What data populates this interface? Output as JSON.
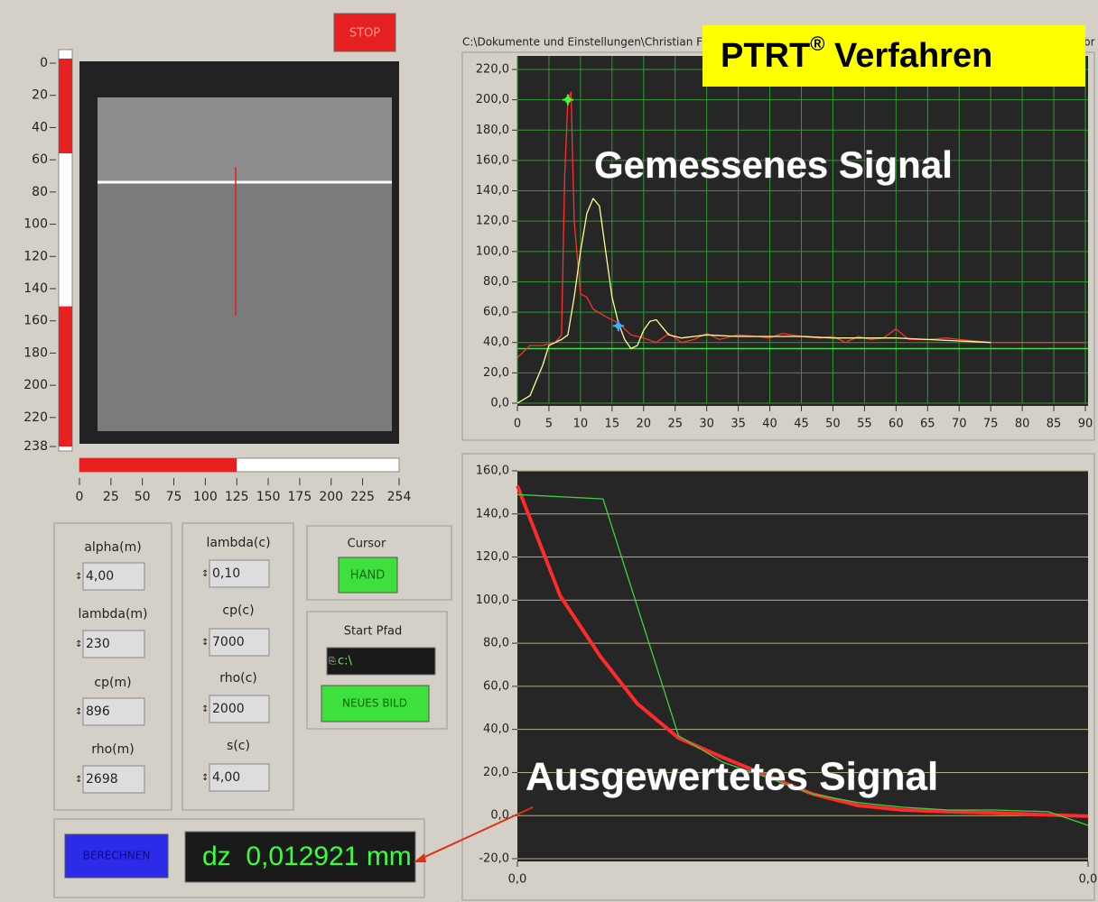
{
  "stop_button": "STOP",
  "path": "C:\\Dokumente und Einstellungen\\Christian Flo",
  "path_end": "br",
  "banner": {
    "title": "PTRT",
    "mark": "®",
    "rest": " Verfahren"
  },
  "overlay_top": "Gemessenes Signal",
  "overlay_bottom": "Ausgewertetes Signal",
  "vertical_scale": {
    "lim": [
      0,
      238
    ],
    "ticks": [
      0,
      20,
      40,
      60,
      80,
      100,
      120,
      140,
      160,
      180,
      200,
      220,
      238
    ],
    "selection": [
      56,
      151
    ]
  },
  "horizontal_scale": {
    "lim": [
      0,
      254
    ],
    "ticks": [
      0,
      25,
      50,
      75,
      100,
      125,
      150,
      175,
      200,
      225,
      254
    ],
    "value": 125
  },
  "params_m": [
    {
      "label": "alpha(m)",
      "value": "4,00"
    },
    {
      "label": "lambda(m)",
      "value": "230"
    },
    {
      "label": "cp(m)",
      "value": "896"
    },
    {
      "label": "rho(m)",
      "value": "2698"
    }
  ],
  "params_c": [
    {
      "label": "lambda(c)",
      "value": "0,10"
    },
    {
      "label": "cp(c)",
      "value": "7000"
    },
    {
      "label": "rho(c)",
      "value": "2000"
    },
    {
      "label": "s(c)",
      "value": "4,00"
    }
  ],
  "cursor": {
    "label": "Cursor",
    "button": "HAND"
  },
  "start_path": {
    "label": "Start Pfad",
    "value": "c:\\",
    "button": "NEUES BILD"
  },
  "compute_button": "BERECHNEN",
  "result": "dz  0,012921 mm",
  "chart_data": [
    {
      "type": "line",
      "grid": "both",
      "grid_color": "#2f9a2f",
      "background": "#262626",
      "xlim": [
        0,
        90
      ],
      "xticks": [
        0,
        5,
        10,
        15,
        20,
        25,
        30,
        35,
        40,
        45,
        50,
        55,
        60,
        65,
        70,
        75,
        80,
        85,
        90
      ],
      "ylim": [
        0,
        220
      ],
      "yticks": [
        {
          "value": 0,
          "label": "0,0"
        },
        {
          "value": 20,
          "label": "20,0"
        },
        {
          "value": 40,
          "label": "40,0"
        },
        {
          "value": 60,
          "label": "60,0"
        },
        {
          "value": 80,
          "label": "80,0"
        },
        {
          "value": 100,
          "label": "100,0"
        },
        {
          "value": 120,
          "label": "120,0"
        },
        {
          "value": 140,
          "label": "140,0"
        },
        {
          "value": 160,
          "label": "160,0"
        },
        {
          "value": 180,
          "label": "180,0"
        },
        {
          "value": 200,
          "label": "200,0"
        },
        {
          "value": 220,
          "label": "220,0"
        }
      ],
      "hline": {
        "value": 36,
        "color": "#40e040"
      },
      "series": [
        {
          "color": "#ff3030",
          "width": 1.3,
          "x": [
            0,
            2,
            4,
            6,
            7,
            7.5,
            8,
            8.5,
            9,
            10,
            11,
            12,
            14,
            16,
            18,
            20,
            22,
            24,
            26,
            28,
            30,
            32,
            35,
            38,
            40,
            42,
            45,
            48,
            50,
            52,
            54,
            56,
            58,
            60,
            62,
            65,
            68,
            70,
            75,
            80,
            85,
            90
          ],
          "values": [
            30,
            38,
            38,
            40,
            45,
            150,
            200,
            205,
            120,
            72,
            70,
            62,
            57,
            53,
            45,
            43,
            40,
            46,
            40,
            42,
            46,
            42,
            45,
            44,
            43,
            46,
            44,
            43,
            44,
            40,
            44,
            42,
            43,
            49,
            42,
            42,
            43,
            42,
            40,
            40,
            40,
            40
          ]
        },
        {
          "color": "#ffff90",
          "width": 1.3,
          "x": [
            0,
            2,
            4,
            5,
            6,
            7,
            8,
            9,
            10,
            11,
            12,
            13,
            14,
            15,
            16,
            17,
            18,
            19,
            20,
            21,
            22,
            23,
            24,
            26,
            28,
            30,
            35,
            40,
            45,
            50,
            55,
            60,
            65,
            70,
            75
          ],
          "values": [
            0,
            5,
            25,
            38,
            40,
            42,
            45,
            70,
            100,
            125,
            135,
            130,
            100,
            70,
            53,
            42,
            36,
            38,
            48,
            54,
            55,
            50,
            45,
            43,
            44,
            45,
            44,
            44,
            44,
            43,
            43,
            43,
            42,
            41,
            40
          ]
        }
      ],
      "cursors": [
        {
          "x": 8,
          "y": 200,
          "color": "#40ff40"
        },
        {
          "x": 16,
          "y": 51,
          "color": "#40b0ff"
        }
      ]
    },
    {
      "type": "line",
      "grid": "y",
      "grid_color": "#b0b07a",
      "background": "#262626",
      "xlim": [
        0,
        0.04
      ],
      "xticks": [
        {
          "value": 0,
          "label": "0,0"
        },
        {
          "value": 0.04,
          "label": "0,0"
        }
      ],
      "ylim": [
        -20,
        160
      ],
      "yticks": [
        {
          "value": -20,
          "label": "-20,0"
        },
        {
          "value": 0,
          "label": "0,0"
        },
        {
          "value": 20,
          "label": "20,0"
        },
        {
          "value": 40,
          "label": "40,0"
        },
        {
          "value": 60,
          "label": "60,0"
        },
        {
          "value": 80,
          "label": "80,0"
        },
        {
          "value": 100,
          "label": "100,0"
        },
        {
          "value": 120,
          "label": "120,0"
        },
        {
          "value": 140,
          "label": "140,0"
        },
        {
          "value": 160,
          "label": "160,0"
        }
      ],
      "series": [
        {
          "color": "#ff2a2a",
          "width": 4,
          "x": [
            0,
            0.003,
            0.0058,
            0.0084,
            0.0113,
            0.0144,
            0.0175,
            0.0207,
            0.0239,
            0.027,
            0.0302,
            0.0334,
            0.0365,
            0.04
          ],
          "values": [
            153,
            102,
            74,
            52,
            36,
            27,
            18.5,
            10,
            4.7,
            2.6,
            1.8,
            1.3,
            0.5,
            -0.3
          ]
        },
        {
          "color": "#40d040",
          "width": 1.3,
          "x": [
            0,
            0.006,
            0.0113,
            0.0144,
            0.0175,
            0.0207,
            0.0239,
            0.027,
            0.0302,
            0.0334,
            0.0372,
            0.04
          ],
          "values": [
            149,
            147,
            37,
            24.8,
            17.7,
            10,
            6,
            3.9,
            2.6,
            2.6,
            1.8,
            -4.5
          ]
        }
      ]
    }
  ]
}
